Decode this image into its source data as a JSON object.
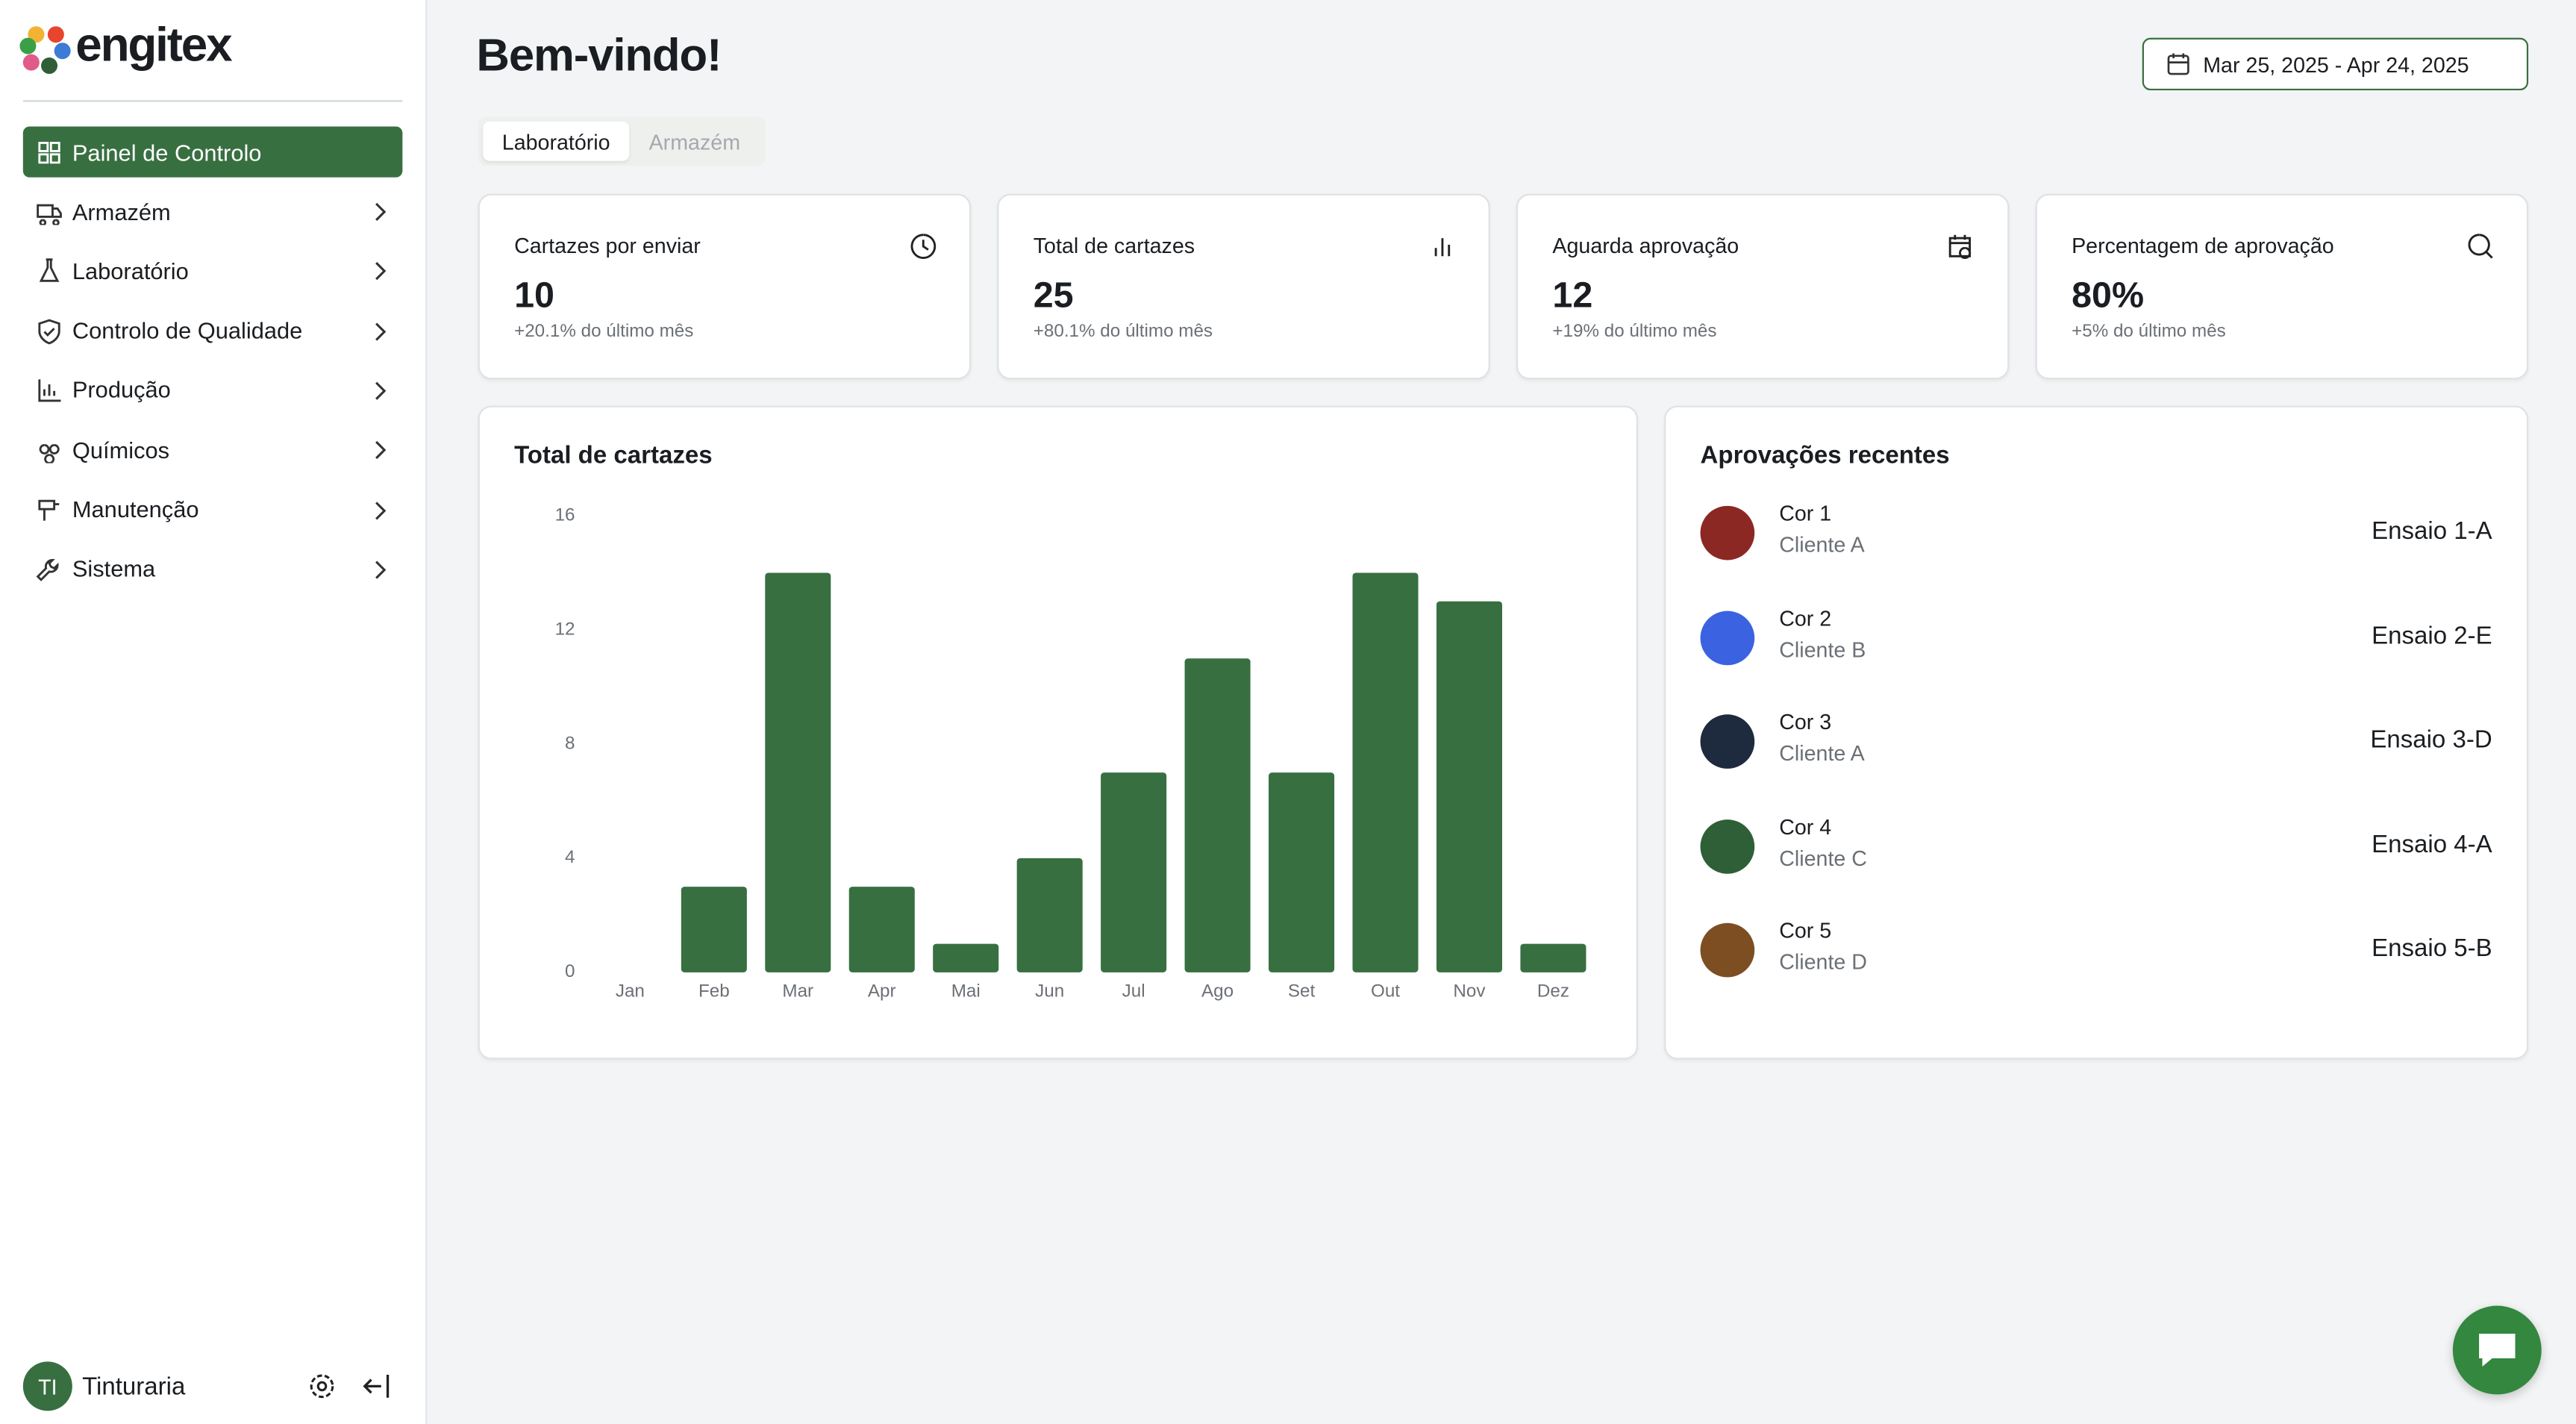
{
  "sidebar": {
    "brand": "engitex",
    "nav": [
      "Painel de Controlo",
      "Armazém",
      "Laboratório",
      "Controlo de Qualidade",
      "Produção",
      "Químicos",
      "Manutenção",
      "Sistema"
    ],
    "user": {
      "initials": "TI",
      "name": "Tinturaria"
    }
  },
  "header": {
    "title": "Bem-vindo!",
    "date_range": "Mar 25, 2025 - Apr 24, 2025"
  },
  "tabs": [
    "Laboratório",
    "Armazém"
  ],
  "stats": [
    {
      "label": "Cartazes por enviar",
      "value": "10",
      "change": "+20.1% do último mês"
    },
    {
      "label": "Total de cartazes",
      "value": "25",
      "change": "+80.1% do último mês"
    },
    {
      "label": "Aguarda aprovação",
      "value": "12",
      "change": "+19% do último mês"
    },
    {
      "label": "Percentagem de aprovação",
      "value": "80%",
      "change": "+5% do último mês"
    }
  ],
  "chart_data": {
    "type": "bar",
    "title": "Total de cartazes",
    "categories": [
      "Jan",
      "Feb",
      "Mar",
      "Apr",
      "Mai",
      "Jun",
      "Jul",
      "Ago",
      "Set",
      "Out",
      "Nov",
      "Dez"
    ],
    "values": [
      0,
      3,
      14,
      3,
      1,
      4,
      7,
      11,
      7,
      14,
      13,
      1
    ],
    "color": "#386f41",
    "ylim": [
      0,
      16
    ],
    "yticks": [
      0,
      4,
      8,
      12,
      16
    ],
    "grid": false
  },
  "approvals": {
    "title": "Aprovações recentes",
    "items": [
      {
        "name": "Cor 1",
        "client": "Cliente A",
        "test": "Ensaio 1-A",
        "color": "#8c2823"
      },
      {
        "name": "Cor 2",
        "client": "Cliente B",
        "test": "Ensaio 2-E",
        "color": "#3b62e0"
      },
      {
        "name": "Cor 3",
        "client": "Cliente A",
        "test": "Ensaio 3-D",
        "color": "#1e2a3d"
      },
      {
        "name": "Cor 4",
        "client": "Cliente C",
        "test": "Ensaio 4-A",
        "color": "#2f5f36"
      },
      {
        "name": "Cor 5",
        "client": "Cliente D",
        "test": "Ensaio 5-B",
        "color": "#7d4e22"
      }
    ]
  }
}
